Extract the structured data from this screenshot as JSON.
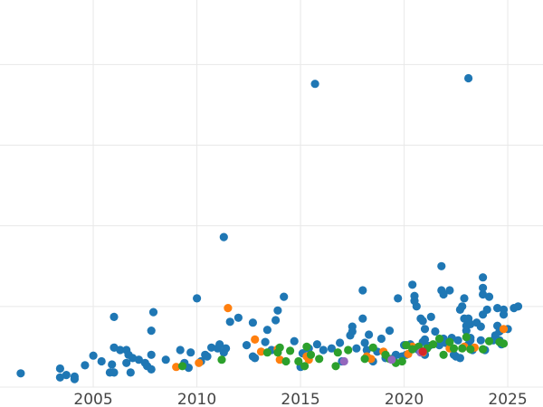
{
  "chart_data": {
    "type": "scatter",
    "title": "",
    "xlabel": "",
    "ylabel": "",
    "xlim": [
      2000.5,
      2026.7
    ],
    "ylim": [
      0,
      48
    ],
    "x_ticks": [
      2005,
      2010,
      2015,
      2020,
      2025
    ],
    "x_tick_labels": [
      "2005",
      "2010",
      "2015",
      "2020",
      "2025"
    ],
    "y_gridlines": [
      0,
      10,
      20,
      30,
      40
    ],
    "grid": true,
    "legend": "none",
    "colors": [
      "#1f77b4",
      "#ff7f0e",
      "#2ca02c",
      "#9467bd",
      "#d62728"
    ],
    "series": [
      {
        "color": "#1f77b4",
        "points": [
          [
            2001.5,
            1.7
          ],
          [
            2003.4,
            2.3
          ],
          [
            2003.4,
            1.2
          ],
          [
            2003.7,
            1.5
          ],
          [
            2004.1,
            1.3
          ],
          [
            2004.1,
            1.0
          ],
          [
            2004.6,
            2.7
          ],
          [
            2005.0,
            3.9
          ],
          [
            2005.4,
            3.2
          ],
          [
            2005.8,
            1.8
          ],
          [
            2005.9,
            2.8
          ],
          [
            2006.0,
            4.9
          ],
          [
            2006.0,
            8.7
          ],
          [
            2006.0,
            1.8
          ],
          [
            2006.3,
            4.6
          ],
          [
            2006.6,
            3.0
          ],
          [
            2006.6,
            4.6
          ],
          [
            2006.7,
            4.0
          ],
          [
            2006.8,
            1.8
          ],
          [
            2006.9,
            3.6
          ],
          [
            2007.2,
            3.4
          ],
          [
            2007.5,
            3.0
          ],
          [
            2007.6,
            2.6
          ],
          [
            2007.8,
            2.2
          ],
          [
            2007.8,
            4.0
          ],
          [
            2007.8,
            7.0
          ],
          [
            2007.9,
            9.3
          ],
          [
            2008.5,
            3.4
          ],
          [
            2009.2,
            4.6
          ],
          [
            2009.4,
            3.0
          ],
          [
            2009.6,
            2.4
          ],
          [
            2009.7,
            4.3
          ],
          [
            2010.0,
            11.0
          ],
          [
            2010.2,
            3.2
          ],
          [
            2010.4,
            4.0
          ],
          [
            2010.5,
            3.8
          ],
          [
            2010.7,
            4.9
          ],
          [
            2011.0,
            4.8
          ],
          [
            2011.1,
            5.3
          ],
          [
            2011.3,
            4.3
          ],
          [
            2011.3,
            18.6
          ],
          [
            2011.4,
            4.8
          ],
          [
            2011.6,
            8.1
          ],
          [
            2012.0,
            8.6
          ],
          [
            2012.4,
            5.2
          ],
          [
            2012.7,
            3.8
          ],
          [
            2012.7,
            8.0
          ],
          [
            2012.8,
            3.6
          ],
          [
            2013.3,
            5.6
          ],
          [
            2013.4,
            7.1
          ],
          [
            2013.6,
            4.6
          ],
          [
            2013.8,
            8.3
          ],
          [
            2013.9,
            9.5
          ],
          [
            2014.2,
            11.2
          ],
          [
            2014.7,
            5.7
          ],
          [
            2015.0,
            2.5
          ],
          [
            2015.1,
            4.2
          ],
          [
            2015.4,
            4.8
          ],
          [
            2015.7,
            37.6
          ],
          [
            2015.8,
            5.3
          ],
          [
            2016.1,
            4.6
          ],
          [
            2016.5,
            4.8
          ],
          [
            2016.9,
            5.5
          ],
          [
            2017.0,
            3.2
          ],
          [
            2017.4,
            6.4
          ],
          [
            2017.5,
            7.5
          ],
          [
            2017.5,
            6.9
          ],
          [
            2017.7,
            4.8
          ],
          [
            2018.0,
            12.0
          ],
          [
            2018.0,
            8.5
          ],
          [
            2018.1,
            5.5
          ],
          [
            2018.2,
            4.6
          ],
          [
            2018.3,
            6.5
          ],
          [
            2018.5,
            3.2
          ],
          [
            2018.7,
            4.4
          ],
          [
            2018.9,
            6.0
          ],
          [
            2019.1,
            3.6
          ],
          [
            2019.3,
            7.0
          ],
          [
            2019.5,
            3.6
          ],
          [
            2019.6,
            4.0
          ],
          [
            2019.7,
            11.0
          ],
          [
            2019.9,
            3.8
          ],
          [
            2020.0,
            5.2
          ],
          [
            2020.1,
            4.0
          ],
          [
            2020.3,
            5.3
          ],
          [
            2020.4,
            12.7
          ],
          [
            2020.5,
            10.7
          ],
          [
            2020.5,
            11.3
          ],
          [
            2020.6,
            10.0
          ],
          [
            2020.7,
            4.6
          ],
          [
            2020.8,
            8.5
          ],
          [
            2020.9,
            5.6
          ],
          [
            2020.9,
            8.2
          ],
          [
            2021.0,
            4.0
          ],
          [
            2021.0,
            5.9
          ],
          [
            2021.0,
            7.2
          ],
          [
            2021.2,
            5.1
          ],
          [
            2021.3,
            8.7
          ],
          [
            2021.5,
            6.9
          ],
          [
            2021.7,
            5.2
          ],
          [
            2021.8,
            15.0
          ],
          [
            2021.8,
            12.0
          ],
          [
            2021.9,
            6.0
          ],
          [
            2021.9,
            11.5
          ],
          [
            2022.0,
            5.5
          ],
          [
            2022.2,
            12.0
          ],
          [
            2022.3,
            6.1
          ],
          [
            2022.4,
            4.0
          ],
          [
            2022.5,
            3.8
          ],
          [
            2022.6,
            5.8
          ],
          [
            2022.7,
            3.6
          ],
          [
            2022.7,
            9.6
          ],
          [
            2022.8,
            10.0
          ],
          [
            2022.9,
            8.5
          ],
          [
            2022.9,
            11.0
          ],
          [
            2023.0,
            7.0
          ],
          [
            2023.0,
            7.6
          ],
          [
            2023.1,
            5.3
          ],
          [
            2023.1,
            38.3
          ],
          [
            2023.1,
            8.5
          ],
          [
            2023.2,
            6.1
          ],
          [
            2023.2,
            7.8
          ],
          [
            2023.2,
            5.8
          ],
          [
            2023.3,
            4.6
          ],
          [
            2023.5,
            8.0
          ],
          [
            2023.7,
            7.5
          ],
          [
            2023.7,
            5.8
          ],
          [
            2023.8,
            9.0
          ],
          [
            2023.8,
            11.5
          ],
          [
            2023.8,
            12.3
          ],
          [
            2023.8,
            13.6
          ],
          [
            2023.9,
            4.6
          ],
          [
            2024.0,
            9.6
          ],
          [
            2024.1,
            11.2
          ],
          [
            2024.3,
            5.8
          ],
          [
            2024.4,
            6.4
          ],
          [
            2024.5,
            7.6
          ],
          [
            2024.5,
            9.8
          ],
          [
            2024.6,
            6.9
          ],
          [
            2024.6,
            5.8
          ],
          [
            2024.7,
            5.3
          ],
          [
            2024.8,
            9.0
          ],
          [
            2024.8,
            9.6
          ],
          [
            2025.0,
            7.2
          ],
          [
            2025.3,
            9.8
          ],
          [
            2025.5,
            10.0
          ]
        ]
      },
      {
        "color": "#ff7f0e",
        "points": [
          [
            2009.0,
            2.5
          ],
          [
            2010.1,
            3.0
          ],
          [
            2011.5,
            9.8
          ],
          [
            2012.8,
            5.9
          ],
          [
            2013.1,
            4.4
          ],
          [
            2013.9,
            4.7
          ],
          [
            2014.0,
            3.4
          ],
          [
            2015.3,
            3.8
          ],
          [
            2015.4,
            3.4
          ],
          [
            2018.2,
            3.8
          ],
          [
            2018.4,
            3.5
          ],
          [
            2019.0,
            4.4
          ],
          [
            2020.2,
            4.1
          ],
          [
            2020.4,
            5.0
          ],
          [
            2020.9,
            4.3
          ],
          [
            2022.2,
            4.8
          ],
          [
            2022.9,
            5.0
          ],
          [
            2023.4,
            4.9
          ],
          [
            2024.8,
            7.2
          ]
        ]
      },
      {
        "color": "#2ca02c",
        "points": [
          [
            2009.3,
            2.6
          ],
          [
            2011.2,
            3.4
          ],
          [
            2013.4,
            4.3
          ],
          [
            2013.9,
            4.3
          ],
          [
            2014.0,
            4.9
          ],
          [
            2014.3,
            3.2
          ],
          [
            2014.5,
            4.5
          ],
          [
            2014.9,
            3.2
          ],
          [
            2015.2,
            2.6
          ],
          [
            2015.3,
            5.0
          ],
          [
            2015.5,
            4.0
          ],
          [
            2015.9,
            3.5
          ],
          [
            2016.7,
            2.6
          ],
          [
            2016.8,
            4.3
          ],
          [
            2017.3,
            4.6
          ],
          [
            2018.1,
            3.5
          ],
          [
            2018.5,
            4.9
          ],
          [
            2019.1,
            4.0
          ],
          [
            2019.3,
            3.5
          ],
          [
            2019.6,
            3.0
          ],
          [
            2019.9,
            3.2
          ],
          [
            2020.1,
            5.2
          ],
          [
            2020.4,
            4.7
          ],
          [
            2020.7,
            5.0
          ],
          [
            2021.1,
            4.8
          ],
          [
            2021.4,
            5.3
          ],
          [
            2021.7,
            6.0
          ],
          [
            2021.9,
            4.0
          ],
          [
            2022.2,
            5.6
          ],
          [
            2022.4,
            4.8
          ],
          [
            2022.8,
            4.8
          ],
          [
            2023.0,
            6.2
          ],
          [
            2023.2,
            4.7
          ],
          [
            2023.8,
            4.7
          ],
          [
            2024.1,
            5.7
          ],
          [
            2024.6,
            5.6
          ],
          [
            2024.8,
            5.4
          ]
        ]
      },
      {
        "color": "#9467bd",
        "points": [
          [
            2017.1,
            3.2
          ],
          [
            2019.4,
            3.4
          ],
          [
            2020.8,
            4.3
          ]
        ]
      },
      {
        "color": "#d62728",
        "points": [
          [
            2020.9,
            4.4
          ]
        ]
      }
    ]
  }
}
